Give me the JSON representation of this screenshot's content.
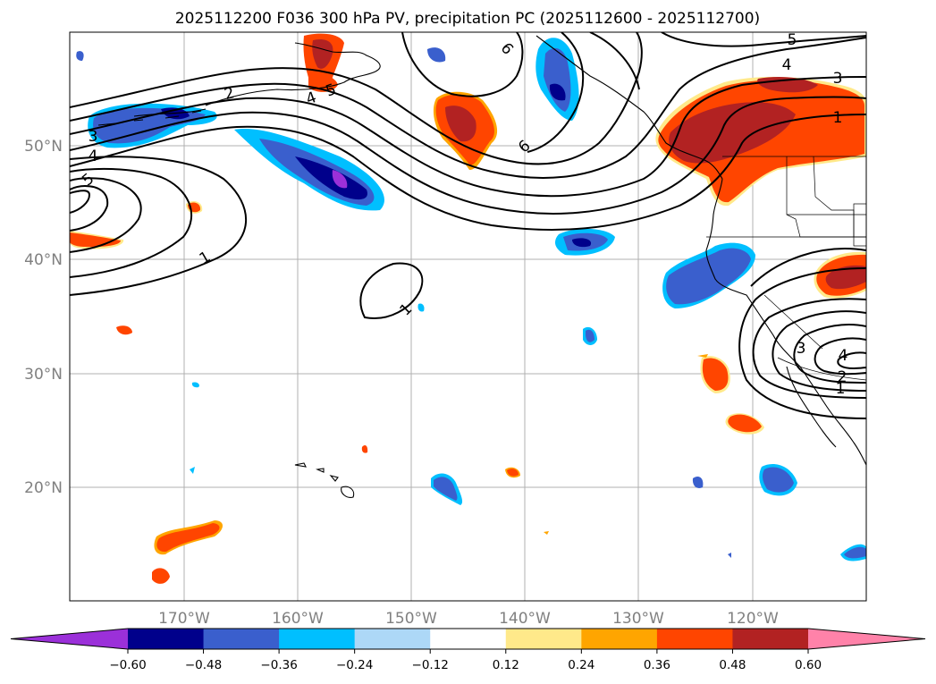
{
  "title": "2025112200 F036 300 hPa PV, precipitation PC (2025112600 - 2025112700)",
  "lat_labels": [
    "50°N",
    "40°N",
    "30°N",
    "20°N"
  ],
  "lon_labels": [
    "170°W",
    "160°W",
    "150°W",
    "140°W",
    "130°W",
    "120°W"
  ],
  "colorbar": {
    "ticks": [
      "−0.60",
      "−0.48",
      "−0.36",
      "−0.24",
      "−0.12",
      "0.12",
      "0.24",
      "0.36",
      "0.48",
      "0.60"
    ],
    "colors": [
      "#9b30d9",
      "#00008b",
      "#3a5fcd",
      "#00bfff",
      "#add8f7",
      "#ffffff",
      "#ffe98a",
      "#ffa500",
      "#ff4500",
      "#b22222",
      "#ff82a9"
    ]
  },
  "contour_labels": {
    "c1_west": "1",
    "c1_mid": "1",
    "c1_ne": "1",
    "c1_se": "1",
    "c2_nw": "2",
    "c2_se": "2",
    "c3_nw": "3",
    "c3_ne": "3",
    "c3_se": "3",
    "c4_nw": "4",
    "c4_mid": "4",
    "c4_ne": "4",
    "c4_se": "4",
    "c5_nw": "5",
    "c5_mid": "5",
    "c5_ne": "5",
    "c6_n": "6",
    "c6_mid": "6"
  },
  "colors": {
    "purple": "#9b30d9",
    "dark_blue": "#00008b",
    "blue": "#3a5fcd",
    "cyan": "#00bfff",
    "light_blue": "#add8f7",
    "yellow": "#ffe98a",
    "orange": "#ffa500",
    "red_orange": "#ff4500",
    "dark_red": "#b22222",
    "pink": "#ff82a9"
  }
}
